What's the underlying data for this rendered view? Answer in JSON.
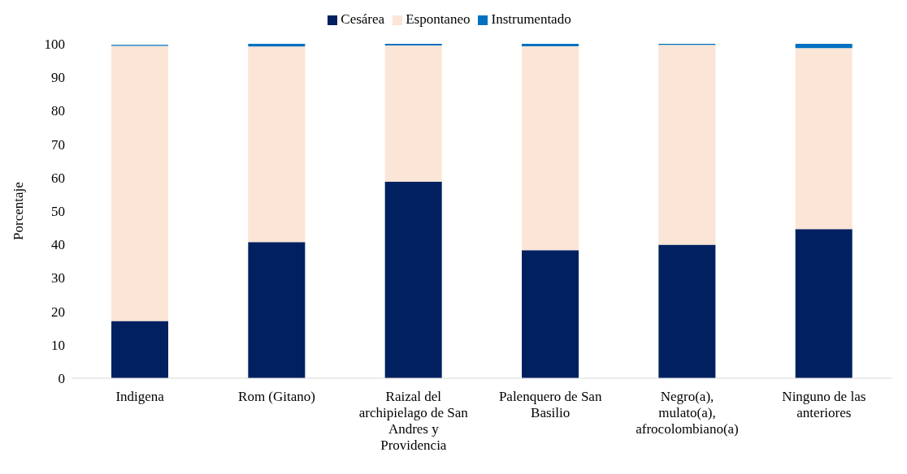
{
  "chart_data": {
    "type": "bar",
    "stacked": true,
    "ylabel": "Porcentaje",
    "categories": [
      "Indigena",
      "Rom (Gitano)",
      "Raizal del archipielago de San Andres y Providencia",
      "Palenquero de San Basilio",
      "Negro(a), mulato(a), afrocolombiano(a)",
      "Ninguno de las anteriores"
    ],
    "series": [
      {
        "name": "Cesárea",
        "color": "#002060",
        "values": [
          17.1,
          40.7,
          58.8,
          38.3,
          39.9,
          44.6
        ]
      },
      {
        "name": "Espontaneo",
        "color": "#fbe5d6",
        "values": [
          82.3,
          58.5,
          40.7,
          61.0,
          59.8,
          54.1
        ]
      },
      {
        "name": "Instrumentado",
        "color": "#0070c0",
        "values": [
          0.3,
          0.8,
          0.5,
          0.7,
          0.3,
          1.3
        ]
      }
    ],
    "ylim": [
      0,
      100
    ],
    "yticks": [
      0,
      10,
      20,
      30,
      40,
      50,
      60,
      70,
      80,
      90,
      100
    ],
    "grid": false,
    "legend": "top"
  }
}
